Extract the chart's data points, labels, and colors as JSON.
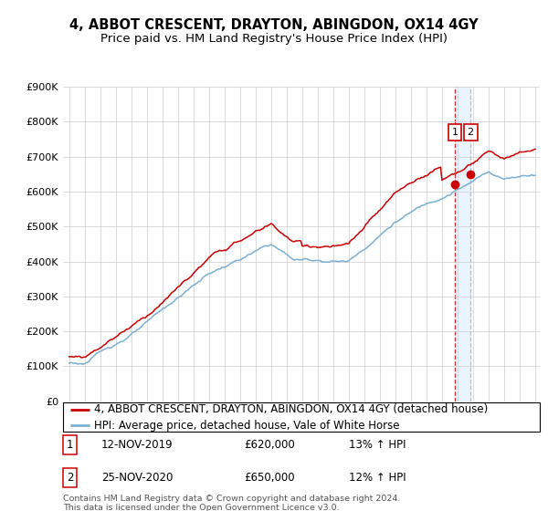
{
  "title": "4, ABBOT CRESCENT, DRAYTON, ABINGDON, OX14 4GY",
  "subtitle": "Price paid vs. HM Land Registry's House Price Index (HPI)",
  "ylim": [
    0,
    900000
  ],
  "yticks": [
    0,
    100000,
    200000,
    300000,
    400000,
    500000,
    600000,
    700000,
    800000,
    900000
  ],
  "ytick_labels": [
    "£0",
    "£100K",
    "£200K",
    "£300K",
    "£400K",
    "£500K",
    "£600K",
    "£700K",
    "£800K",
    "£900K"
  ],
  "hpi_color": "#7bafd4",
  "price_color": "#cc0000",
  "vline1_color": "#cc0000",
  "vline2_color": "#aaaacc",
  "shade_color": "#ddeeff",
  "legend_label_price": "4, ABBOT CRESCENT, DRAYTON, ABINGDON, OX14 4GY (detached house)",
  "legend_label_hpi": "HPI: Average price, detached house, Vale of White Horse",
  "transaction1_date": "12-NOV-2019",
  "transaction1_price": "£620,000",
  "transaction1_note": "13% ↑ HPI",
  "transaction2_date": "25-NOV-2020",
  "transaction2_price": "£650,000",
  "transaction2_note": "12% ↑ HPI",
  "footnote": "Contains HM Land Registry data © Crown copyright and database right 2024.\nThis data is licensed under the Open Government Licence v3.0.",
  "title_fontsize": 10.5,
  "subtitle_fontsize": 9.5,
  "tick_fontsize": 8,
  "legend_fontsize": 8.5,
  "annotation_fontsize": 8.5
}
